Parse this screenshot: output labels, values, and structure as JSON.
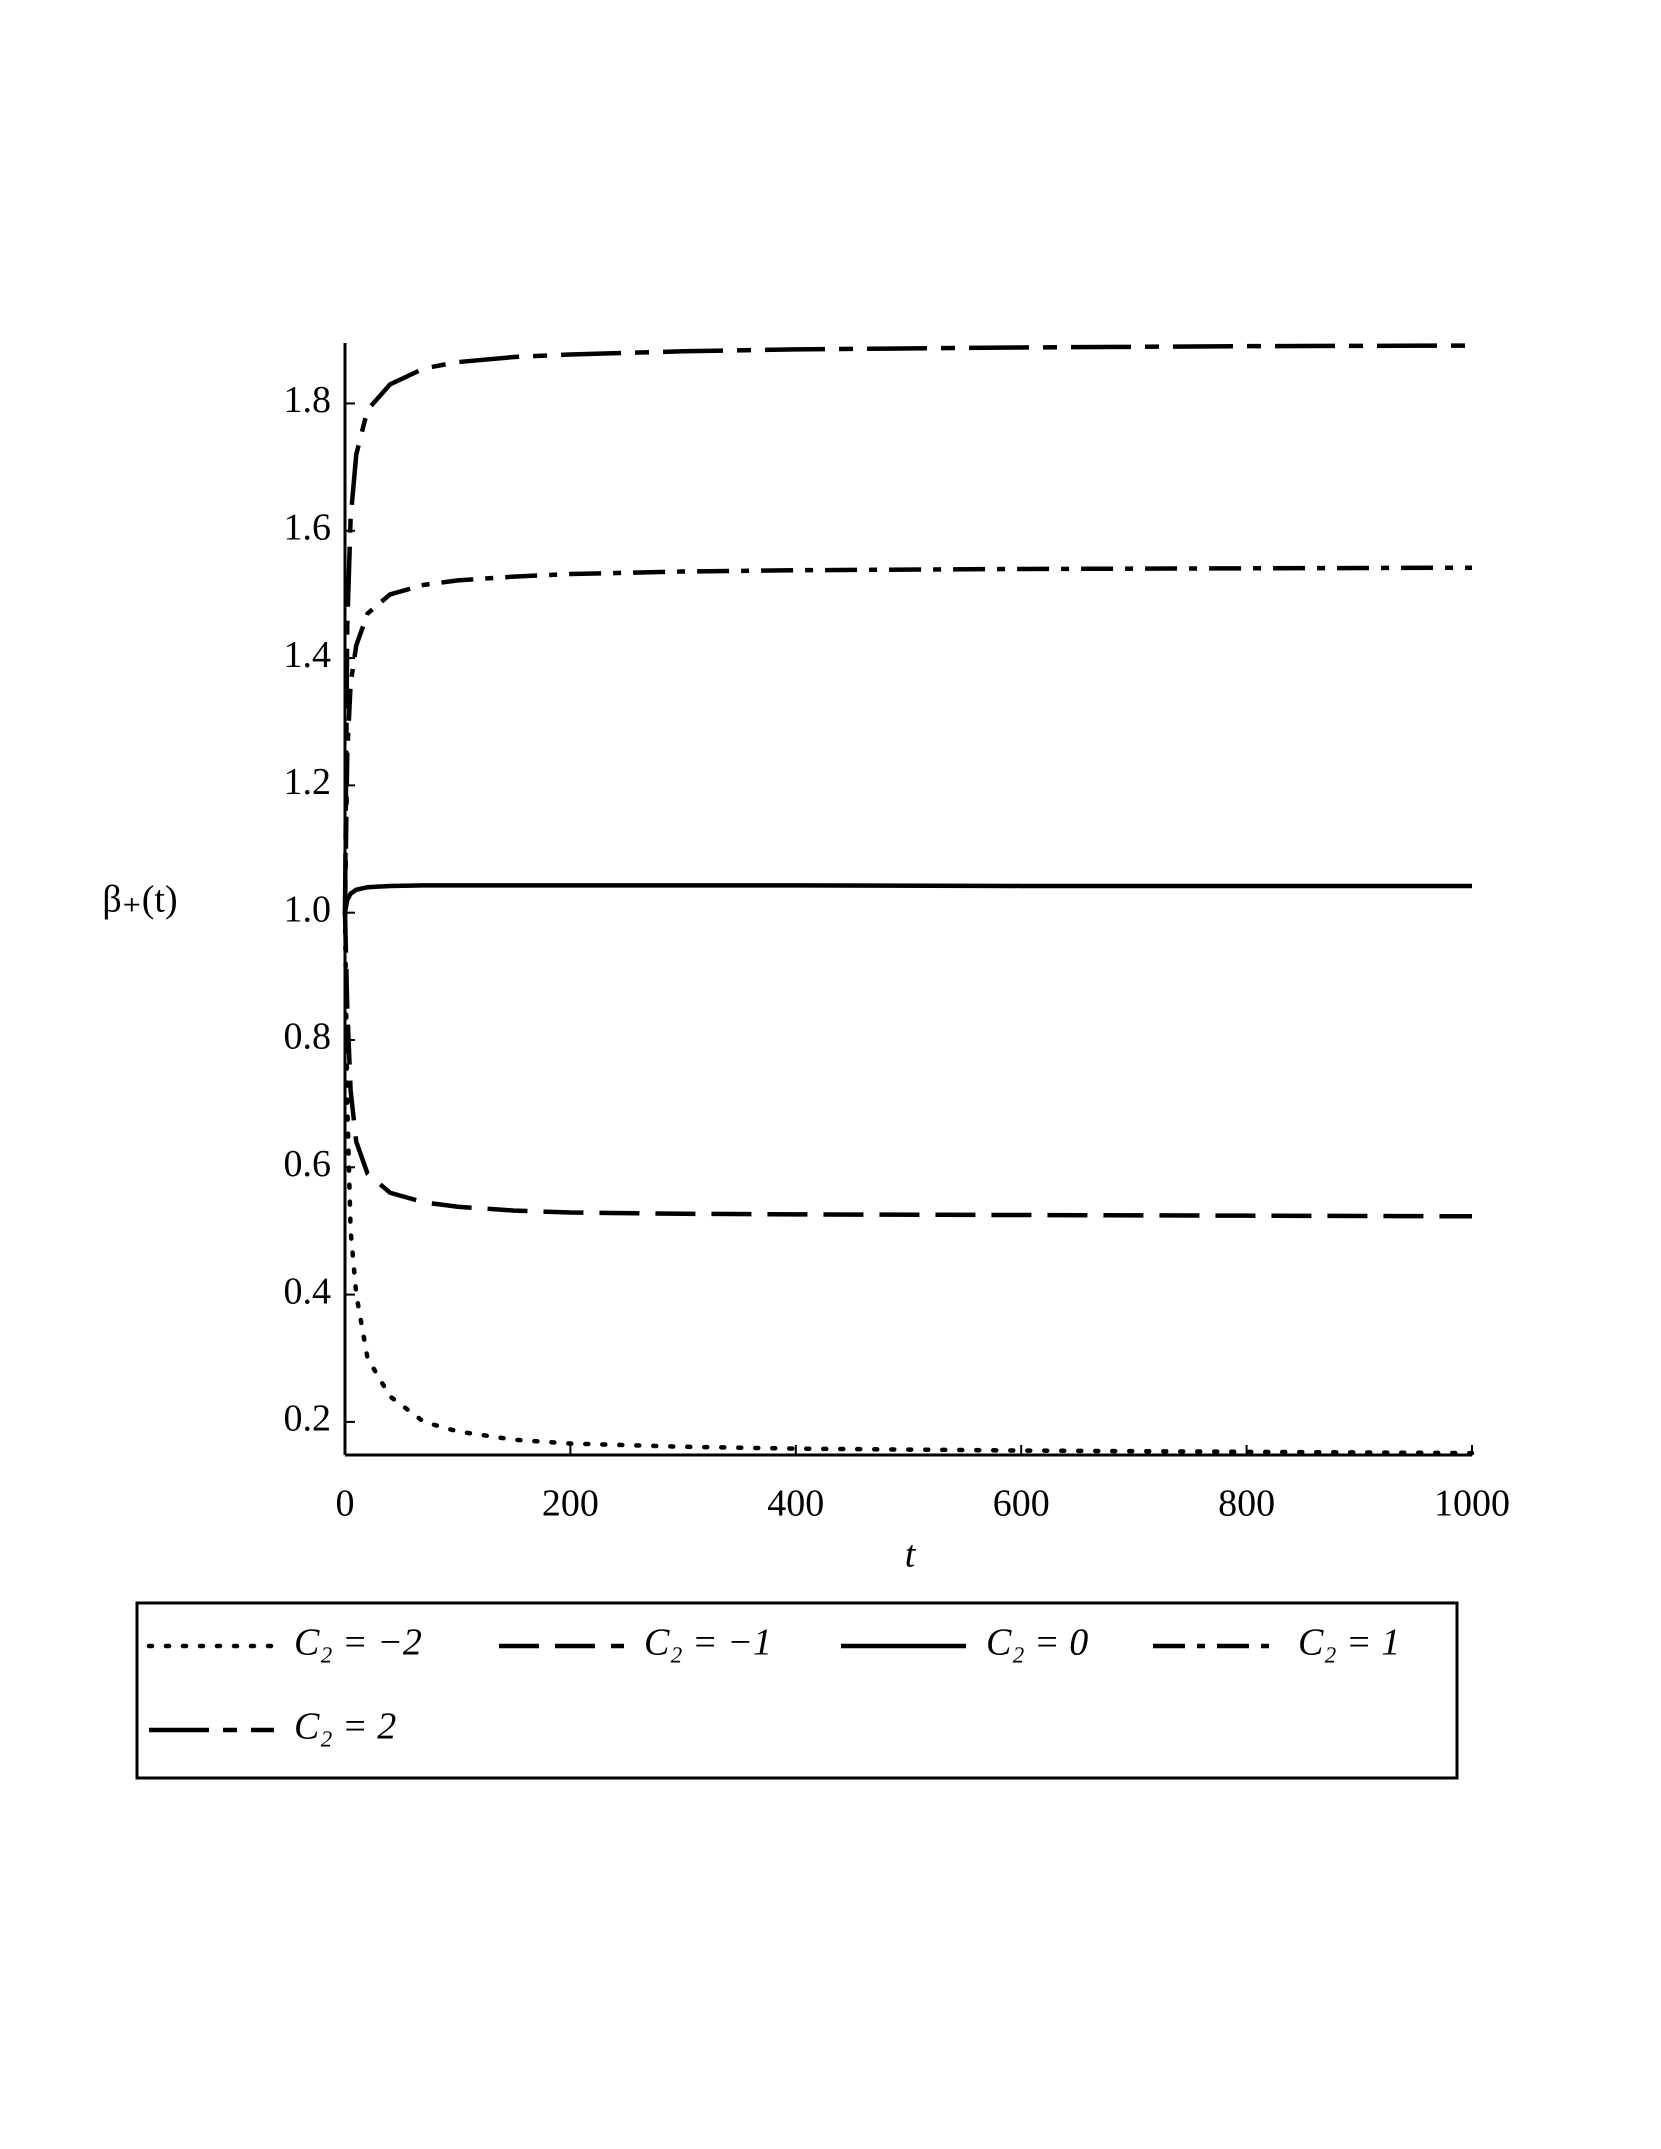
{
  "chart_data": {
    "type": "line",
    "x_label": "t",
    "y_label": "β₊(t)",
    "xlim": [
      0,
      1000
    ],
    "ylim": [
      0.148,
      1.895
    ],
    "xticks": [
      0,
      200,
      400,
      600,
      800,
      1000
    ],
    "yticks": [
      0.2,
      0.4,
      0.6,
      0.8,
      1.0,
      1.2,
      1.4,
      1.6,
      1.8
    ],
    "x": [
      0,
      2,
      5,
      10,
      20,
      40,
      70,
      100,
      150,
      200,
      300,
      400,
      600,
      800,
      1000
    ],
    "series": [
      {
        "name": "C₂ = −2",
        "color": "#000000",
        "style": "dotted",
        "values": [
          1.0,
          0.7,
          0.5,
          0.4,
          0.3,
          0.24,
          0.2,
          0.185,
          0.172,
          0.166,
          0.161,
          0.158,
          0.155,
          0.153,
          0.151
        ]
      },
      {
        "name": "C₂ = −1",
        "color": "#000000",
        "style": "dashed",
        "values": [
          1.0,
          0.85,
          0.72,
          0.64,
          0.59,
          0.56,
          0.545,
          0.538,
          0.532,
          0.529,
          0.527,
          0.526,
          0.525,
          0.524,
          0.523
        ]
      },
      {
        "name": "C₂ = 0",
        "color": "#000000",
        "style": "solid",
        "values": [
          1.0,
          1.02,
          1.03,
          1.036,
          1.04,
          1.042,
          1.043,
          1.043,
          1.043,
          1.043,
          1.043,
          1.043,
          1.042,
          1.042,
          1.042
        ]
      },
      {
        "name": "C₂ = 1",
        "color": "#000000",
        "style": "dashdot",
        "values": [
          1.0,
          1.25,
          1.36,
          1.42,
          1.47,
          1.5,
          1.515,
          1.522,
          1.528,
          1.532,
          1.536,
          1.538,
          1.54,
          1.541,
          1.542
        ]
      },
      {
        "name": "C₂ = 2",
        "color": "#000000",
        "style": "longdash",
        "values": [
          1.0,
          1.45,
          1.62,
          1.72,
          1.79,
          1.83,
          1.855,
          1.865,
          1.873,
          1.877,
          1.882,
          1.885,
          1.888,
          1.89,
          1.891
        ]
      }
    ],
    "legend": "bottom"
  }
}
